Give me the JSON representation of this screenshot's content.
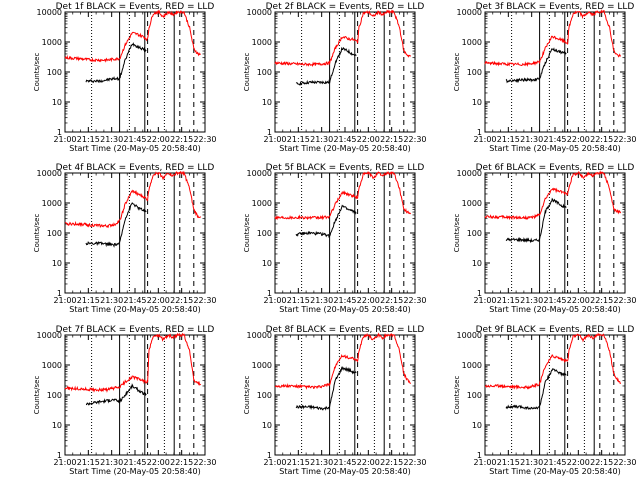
{
  "figure": {
    "background": "#ffffff",
    "series_colors": {
      "events": "#000000",
      "lld": "#ff0000"
    }
  },
  "chart_data": [
    {
      "type": "line",
      "title": "Det 1f BLACK = Events, RED = LLD",
      "xlabel": "Start Time (20-May-05 20:58:40)",
      "ylabel": "Counts/sec",
      "xticks": [
        "21:00",
        "21:15",
        "21:30",
        "21:45",
        "22:00",
        "22:15",
        "22:30"
      ],
      "xlim": [
        0,
        100
      ],
      "yscale": "log",
      "ylim": [
        1,
        10000
      ],
      "yticks": [
        "1",
        "10",
        "100",
        "1000",
        "10000"
      ],
      "vlines": {
        "dotted": [
          19,
          46,
          71
        ],
        "solid": [
          39,
          57,
          78
        ],
        "dashed": [
          59,
          82,
          92
        ]
      },
      "series": [
        {
          "color": "#000000",
          "x": [
            15,
            25,
            35,
            39,
            43,
            48,
            52,
            55,
            58
          ],
          "y": [
            50,
            50,
            60,
            60,
            250,
            900,
            700,
            600,
            500
          ]
        },
        {
          "color": "#ff0000",
          "x": [
            0,
            10,
            20,
            30,
            35,
            39,
            43,
            48,
            52,
            56,
            59,
            60,
            63,
            67,
            70,
            74,
            77,
            80,
            85,
            89,
            92,
            95,
            97
          ],
          "y": [
            300,
            280,
            250,
            250,
            270,
            280,
            800,
            2000,
            1800,
            1500,
            1200,
            3000,
            9000,
            10000,
            7000,
            10000,
            8000,
            10000,
            10000,
            3000,
            600,
            400,
            400
          ]
        }
      ]
    },
    {
      "type": "line",
      "title": "Det 2f BLACK = Events, RED = LLD",
      "xlabel": "Start Time (20-May-05 20:58:40)",
      "ylabel": "Counts/sec",
      "xticks": [
        "21:00",
        "21:15",
        "21:30",
        "21:45",
        "22:00",
        "22:15",
        "22:30"
      ],
      "xlim": [
        0,
        100
      ],
      "yscale": "log",
      "ylim": [
        1,
        10000
      ],
      "yticks": [
        "1",
        "10",
        "100",
        "1000",
        "10000"
      ],
      "vlines": {
        "dotted": [
          19,
          46,
          71
        ],
        "solid": [
          39,
          57,
          78
        ],
        "dashed": [
          59,
          82,
          92
        ]
      },
      "series": [
        {
          "color": "#000000",
          "x": [
            15,
            25,
            35,
            39,
            43,
            48,
            52,
            55,
            58
          ],
          "y": [
            40,
            45,
            45,
            45,
            200,
            600,
            500,
            400,
            350
          ]
        },
        {
          "color": "#ff0000",
          "x": [
            0,
            10,
            20,
            30,
            35,
            39,
            43,
            48,
            52,
            56,
            59,
            60,
            63,
            67,
            70,
            74,
            77,
            80,
            85,
            89,
            92,
            95,
            97
          ],
          "y": [
            200,
            190,
            180,
            180,
            190,
            200,
            600,
            1500,
            1300,
            1200,
            1000,
            3000,
            9000,
            10000,
            7000,
            10000,
            8000,
            10000,
            10000,
            3000,
            500,
            350,
            350
          ]
        }
      ]
    },
    {
      "type": "line",
      "title": "Det 3f BLACK = Events, RED = LLD",
      "xlabel": "Start Time (20-May-05 20:58:40)",
      "ylabel": "Counts/sec",
      "xticks": [
        "21:00",
        "21:15",
        "21:30",
        "21:45",
        "22:00",
        "22:15",
        "22:30"
      ],
      "xlim": [
        0,
        100
      ],
      "yscale": "log",
      "ylim": [
        1,
        10000
      ],
      "yticks": [
        "1",
        "10",
        "100",
        "1000",
        "10000"
      ],
      "vlines": {
        "dotted": [
          19,
          46,
          71
        ],
        "solid": [
          39,
          57,
          78
        ],
        "dashed": [
          59,
          82,
          92
        ]
      },
      "series": [
        {
          "color": "#000000",
          "x": [
            15,
            25,
            35,
            39,
            43,
            48,
            52,
            55,
            58
          ],
          "y": [
            50,
            55,
            55,
            60,
            200,
            600,
            500,
            450,
            400
          ]
        },
        {
          "color": "#ff0000",
          "x": [
            0,
            10,
            20,
            30,
            35,
            39,
            43,
            48,
            52,
            56,
            59,
            60,
            63,
            67,
            70,
            74,
            77,
            80,
            85,
            89,
            92,
            95,
            97
          ],
          "y": [
            200,
            190,
            180,
            180,
            200,
            220,
            600,
            1500,
            1300,
            1100,
            900,
            3000,
            9000,
            10000,
            7000,
            10000,
            8000,
            10000,
            10000,
            3000,
            500,
            350,
            350
          ]
        }
      ]
    },
    {
      "type": "line",
      "title": "Det 4f BLACK = Events, RED = LLD",
      "xlabel": "Start Time (20-May-05 20:58:40)",
      "ylabel": "Counts/sec",
      "xticks": [
        "21:00",
        "21:15",
        "21:30",
        "21:45",
        "22:00",
        "22:15",
        "22:30"
      ],
      "xlim": [
        0,
        100
      ],
      "yscale": "log",
      "ylim": [
        1,
        10000
      ],
      "yticks": [
        "1",
        "10",
        "100",
        "1000",
        "10000"
      ],
      "vlines": {
        "dotted": [
          19,
          46,
          71
        ],
        "solid": [
          39,
          57,
          78
        ],
        "dashed": [
          59,
          82,
          92
        ]
      },
      "series": [
        {
          "color": "#000000",
          "x": [
            15,
            25,
            35,
            39,
            43,
            48,
            52,
            55,
            58
          ],
          "y": [
            45,
            45,
            40,
            45,
            300,
            1000,
            700,
            600,
            500
          ]
        },
        {
          "color": "#ff0000",
          "x": [
            0,
            10,
            20,
            30,
            35,
            39,
            43,
            48,
            52,
            56,
            59,
            60,
            63,
            67,
            70,
            74,
            77,
            80,
            85,
            89,
            92,
            95,
            97
          ],
          "y": [
            200,
            200,
            180,
            170,
            190,
            250,
            900,
            2500,
            2000,
            1600,
            1300,
            3000,
            9000,
            10000,
            7000,
            10000,
            8000,
            10000,
            10000,
            3000,
            600,
            350,
            350
          ]
        }
      ]
    },
    {
      "type": "line",
      "title": "Det 5f BLACK = Events, RED = LLD",
      "xlabel": "Start Time (20-May-05 20:58:40)",
      "ylabel": "Counts/sec",
      "xticks": [
        "21:00",
        "21:15",
        "21:30",
        "21:45",
        "22:00",
        "22:15",
        "22:30"
      ],
      "xlim": [
        0,
        100
      ],
      "yscale": "log",
      "ylim": [
        1,
        10000
      ],
      "yticks": [
        "1",
        "10",
        "100",
        "1000",
        "10000"
      ],
      "vlines": {
        "dotted": [
          19,
          46,
          71
        ],
        "solid": [
          39,
          57,
          78
        ],
        "dashed": [
          59,
          82,
          92
        ]
      },
      "series": [
        {
          "color": "#000000",
          "x": [
            15,
            25,
            35,
            39,
            43,
            48,
            52,
            55,
            58
          ],
          "y": [
            90,
            100,
            90,
            80,
            250,
            800,
            600,
            550,
            450
          ]
        },
        {
          "color": "#ff0000",
          "x": [
            0,
            10,
            20,
            30,
            35,
            39,
            43,
            48,
            52,
            56,
            59,
            60,
            63,
            67,
            70,
            74,
            77,
            80,
            85,
            89,
            92,
            95,
            97
          ],
          "y": [
            330,
            330,
            330,
            320,
            330,
            350,
            900,
            2200,
            2000,
            1700,
            1500,
            3000,
            9000,
            10000,
            7000,
            10000,
            8000,
            10000,
            10000,
            3000,
            600,
            500,
            450
          ]
        }
      ]
    },
    {
      "type": "line",
      "title": "Det 6f BLACK = Events, RED = LLD",
      "xlabel": "Start Time (20-May-05 20:58:40)",
      "ylabel": "Counts/sec",
      "xticks": [
        "21:00",
        "21:15",
        "21:30",
        "21:45",
        "22:00",
        "22:15",
        "22:30"
      ],
      "xlim": [
        0,
        100
      ],
      "yscale": "log",
      "ylim": [
        1,
        10000
      ],
      "yticks": [
        "1",
        "10",
        "100",
        "1000",
        "10000"
      ],
      "vlines": {
        "dotted": [
          19,
          46,
          71
        ],
        "solid": [
          39,
          57,
          78
        ],
        "dashed": [
          59,
          82,
          92
        ]
      },
      "series": [
        {
          "color": "#000000",
          "x": [
            15,
            25,
            35,
            39,
            43,
            48,
            52,
            55,
            58
          ],
          "y": [
            60,
            60,
            55,
            60,
            500,
            1300,
            1000,
            800,
            700
          ]
        },
        {
          "color": "#ff0000",
          "x": [
            0,
            10,
            20,
            30,
            35,
            39,
            43,
            48,
            52,
            56,
            59,
            60,
            63,
            67,
            70,
            74,
            77,
            80,
            85,
            89,
            92,
            95,
            97
          ],
          "y": [
            350,
            340,
            330,
            320,
            340,
            400,
            1300,
            3000,
            2500,
            2200,
            2000,
            3500,
            9000,
            10000,
            7000,
            10000,
            8000,
            10000,
            10000,
            3000,
            600,
            500,
            500
          ]
        }
      ]
    },
    {
      "type": "line",
      "title": "Det 7f BLACK = Events, RED = LLD",
      "xlabel": "Start Time (20-May-05 20:58:40)",
      "ylabel": "Counts/sec",
      "xticks": [
        "21:00",
        "21:15",
        "21:30",
        "21:45",
        "22:00",
        "22:15",
        "22:30"
      ],
      "xlim": [
        0,
        100
      ],
      "yscale": "log",
      "ylim": [
        1,
        10000
      ],
      "yticks": [
        "1",
        "10",
        "100",
        "1000",
        "10000"
      ],
      "vlines": {
        "dotted": [
          19,
          46,
          71
        ],
        "solid": [
          39,
          57,
          78
        ],
        "dashed": [
          59,
          82,
          92
        ]
      },
      "series": [
        {
          "color": "#000000",
          "x": [
            15,
            25,
            35,
            39,
            43,
            48,
            52,
            55,
            58
          ],
          "y": [
            50,
            60,
            70,
            60,
            100,
            200,
            150,
            120,
            100
          ]
        },
        {
          "color": "#ff0000",
          "x": [
            0,
            10,
            20,
            30,
            35,
            39,
            43,
            48,
            52,
            56,
            59,
            60,
            63,
            67,
            70,
            74,
            77,
            80,
            85,
            89,
            92,
            95,
            97
          ],
          "y": [
            170,
            160,
            150,
            150,
            170,
            180,
            270,
            400,
            350,
            300,
            260,
            3000,
            9000,
            10000,
            7000,
            10000,
            8000,
            10000,
            10000,
            3000,
            300,
            250,
            230
          ]
        }
      ]
    },
    {
      "type": "line",
      "title": "Det 8f BLACK = Events, RED = LLD",
      "xlabel": "Start Time (20-May-05 20:58:40)",
      "ylabel": "Counts/sec",
      "xticks": [
        "21:00",
        "21:15",
        "21:30",
        "21:45",
        "22:00",
        "22:15",
        "22:30"
      ],
      "xlim": [
        0,
        100
      ],
      "yscale": "log",
      "ylim": [
        1,
        10000
      ],
      "yticks": [
        "1",
        "10",
        "100",
        "1000",
        "10000"
      ],
      "vlines": {
        "dotted": [
          19,
          46,
          71
        ],
        "solid": [
          39,
          57,
          78
        ],
        "dashed": [
          59,
          82,
          92
        ]
      },
      "series": [
        {
          "color": "#000000",
          "x": [
            15,
            25,
            35,
            39,
            43,
            48,
            52,
            55,
            58
          ],
          "y": [
            40,
            40,
            35,
            40,
            300,
            800,
            700,
            600,
            550
          ]
        },
        {
          "color": "#ff0000",
          "x": [
            0,
            10,
            20,
            30,
            35,
            39,
            43,
            48,
            52,
            56,
            59,
            60,
            63,
            67,
            70,
            74,
            77,
            80,
            85,
            89,
            92,
            95,
            97
          ],
          "y": [
            200,
            200,
            190,
            180,
            200,
            230,
            900,
            2000,
            1800,
            1600,
            1300,
            3000,
            9000,
            10000,
            7000,
            10000,
            8000,
            10000,
            10000,
            3000,
            500,
            300,
            250
          ]
        }
      ]
    },
    {
      "type": "line",
      "title": "Det 9f BLACK = Events, RED = LLD",
      "xlabel": "Start Time (20-May-05 20:58:40)",
      "ylabel": "Counts/sec",
      "xticks": [
        "21:00",
        "21:15",
        "21:30",
        "21:45",
        "22:00",
        "22:15",
        "22:30"
      ],
      "xlim": [
        0,
        100
      ],
      "yscale": "log",
      "ylim": [
        1,
        10000
      ],
      "yticks": [
        "1",
        "10",
        "100",
        "1000",
        "10000"
      ],
      "vlines": {
        "dotted": [
          19,
          46,
          71
        ],
        "solid": [
          39,
          57,
          78
        ],
        "dashed": [
          59,
          82,
          92
        ]
      },
      "series": [
        {
          "color": "#000000",
          "x": [
            15,
            25,
            35,
            39,
            43,
            48,
            52,
            55,
            58
          ],
          "y": [
            40,
            40,
            35,
            40,
            250,
            700,
            600,
            500,
            450
          ]
        },
        {
          "color": "#ff0000",
          "x": [
            0,
            10,
            20,
            30,
            35,
            39,
            43,
            48,
            52,
            56,
            59,
            60,
            63,
            67,
            70,
            74,
            77,
            80,
            85,
            89,
            92,
            95,
            97
          ],
          "y": [
            200,
            200,
            190,
            180,
            200,
            230,
            900,
            2000,
            1800,
            1500,
            1300,
            3000,
            9000,
            10000,
            7000,
            10000,
            8000,
            10000,
            10000,
            3000,
            500,
            300,
            250
          ]
        }
      ]
    }
  ]
}
